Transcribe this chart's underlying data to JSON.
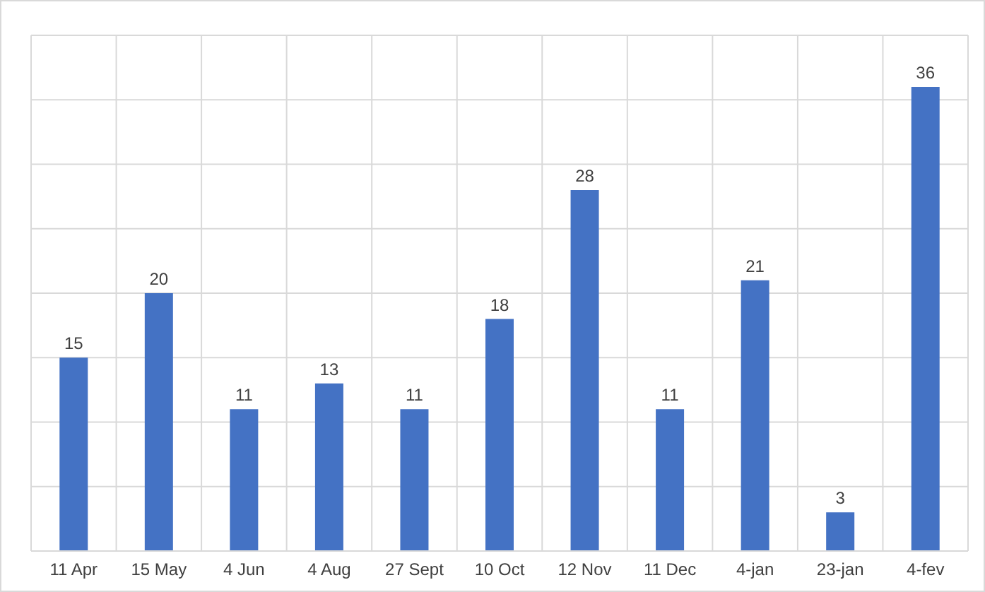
{
  "chart_data": {
    "type": "bar",
    "categories": [
      "11 Apr",
      "15 May",
      "4 Jun",
      "4 Aug",
      "27 Sept",
      "10 Oct",
      "12 Nov",
      "11 Dec",
      "4-jan",
      "23-jan",
      "4-fev"
    ],
    "values": [
      15,
      20,
      11,
      13,
      11,
      18,
      28,
      11,
      21,
      3,
      36
    ],
    "color": "#4472c4",
    "ylim": [
      0,
      40
    ],
    "yticks": [
      {
        "value": 0,
        "label": null
      },
      {
        "value": 5,
        "label": null
      },
      {
        "value": 10,
        "label": null
      },
      {
        "value": 15,
        "label": null
      },
      {
        "value": 20,
        "label": null
      },
      {
        "value": 25,
        "label": null
      },
      {
        "value": 30,
        "label": null
      },
      {
        "value": 35,
        "label": null
      },
      {
        "value": 40,
        "label": null
      }
    ],
    "tick_labels": "x",
    "grid": true,
    "data_labels": true
  }
}
